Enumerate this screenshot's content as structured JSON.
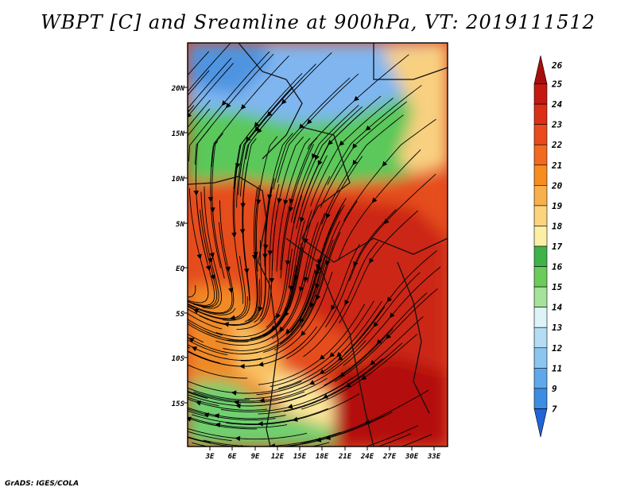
{
  "title": "WBPT [C] and Sreamline at 900hPa, VT: 2019111512",
  "credit": "GrADS: IGES/COLA",
  "map": {
    "lat_ticks": [
      "20N",
      "15N",
      "10N",
      "5N",
      "EQ",
      "5S",
      "10S",
      "15S"
    ],
    "lon_ticks": [
      "3E",
      "6E",
      "9E",
      "12E",
      "15E",
      "18E",
      "21E",
      "24E",
      "27E",
      "30E",
      "33E"
    ],
    "lon_range": [
      0,
      35
    ],
    "lat_range": [
      -20,
      25
    ],
    "regions": [
      {
        "name": "north-cool",
        "color": "#7fb6f0"
      },
      {
        "name": "sahel-green",
        "color": "#5ac85a"
      },
      {
        "name": "central-warm",
        "color": "#d83a1f"
      },
      {
        "name": "southwest-orange",
        "color": "#f08a28"
      },
      {
        "name": "south-green",
        "color": "#70d070"
      },
      {
        "name": "southeast-dark",
        "color": "#b3100e"
      }
    ]
  },
  "colorbar": {
    "labels": [
      "26",
      "25",
      "24",
      "23",
      "22",
      "21",
      "20",
      "19",
      "18",
      "17",
      "16",
      "15",
      "14",
      "13",
      "12",
      "11",
      "9",
      "7"
    ],
    "colors": [
      "#a70e0c",
      "#c41a12",
      "#dc3016",
      "#ea4a1c",
      "#f26a1f",
      "#f78d1e",
      "#f8b04a",
      "#fcd47c",
      "#fbefa6",
      "#3fb34a",
      "#6ccc5a",
      "#a5e29a",
      "#dcf4f8",
      "#b4dcf4",
      "#8cc6f0",
      "#5fa9ea",
      "#3d8ce4",
      "#2064d8"
    ]
  }
}
